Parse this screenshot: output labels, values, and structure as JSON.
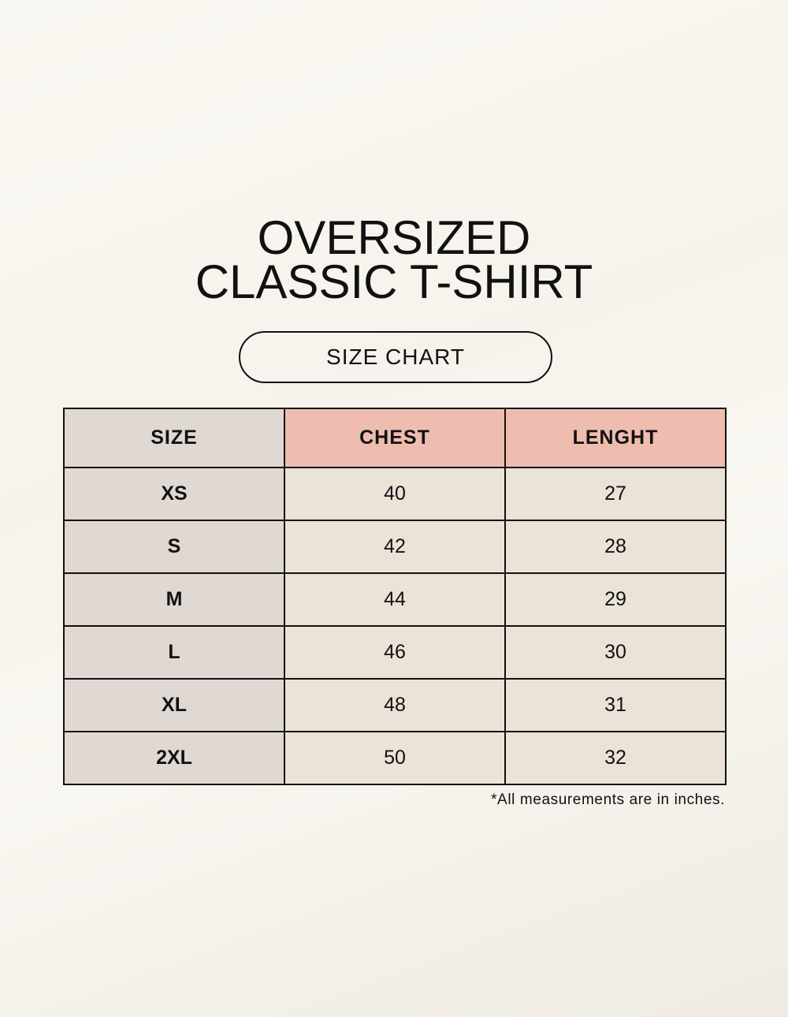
{
  "title": {
    "line1": "OVERSIZED",
    "line2": "CLASSIC T-SHIRT"
  },
  "subtitle": "SIZE CHART",
  "table": {
    "headers": [
      "SIZE",
      "CHEST",
      "LENGHT"
    ],
    "rows": [
      [
        "XS",
        "40",
        "27"
      ],
      [
        "S",
        "42",
        "28"
      ],
      [
        "M",
        "44",
        "29"
      ],
      [
        "L",
        "46",
        "30"
      ],
      [
        "XL",
        "48",
        "31"
      ],
      [
        "2XL",
        "50",
        "32"
      ]
    ]
  },
  "footnote": "*All measurements are in inches.",
  "colors": {
    "size_column": "#e0d8d2",
    "header_accent": "#efbdaf",
    "value_cells": "#ebe3d8",
    "background": "#f8f6f0"
  }
}
